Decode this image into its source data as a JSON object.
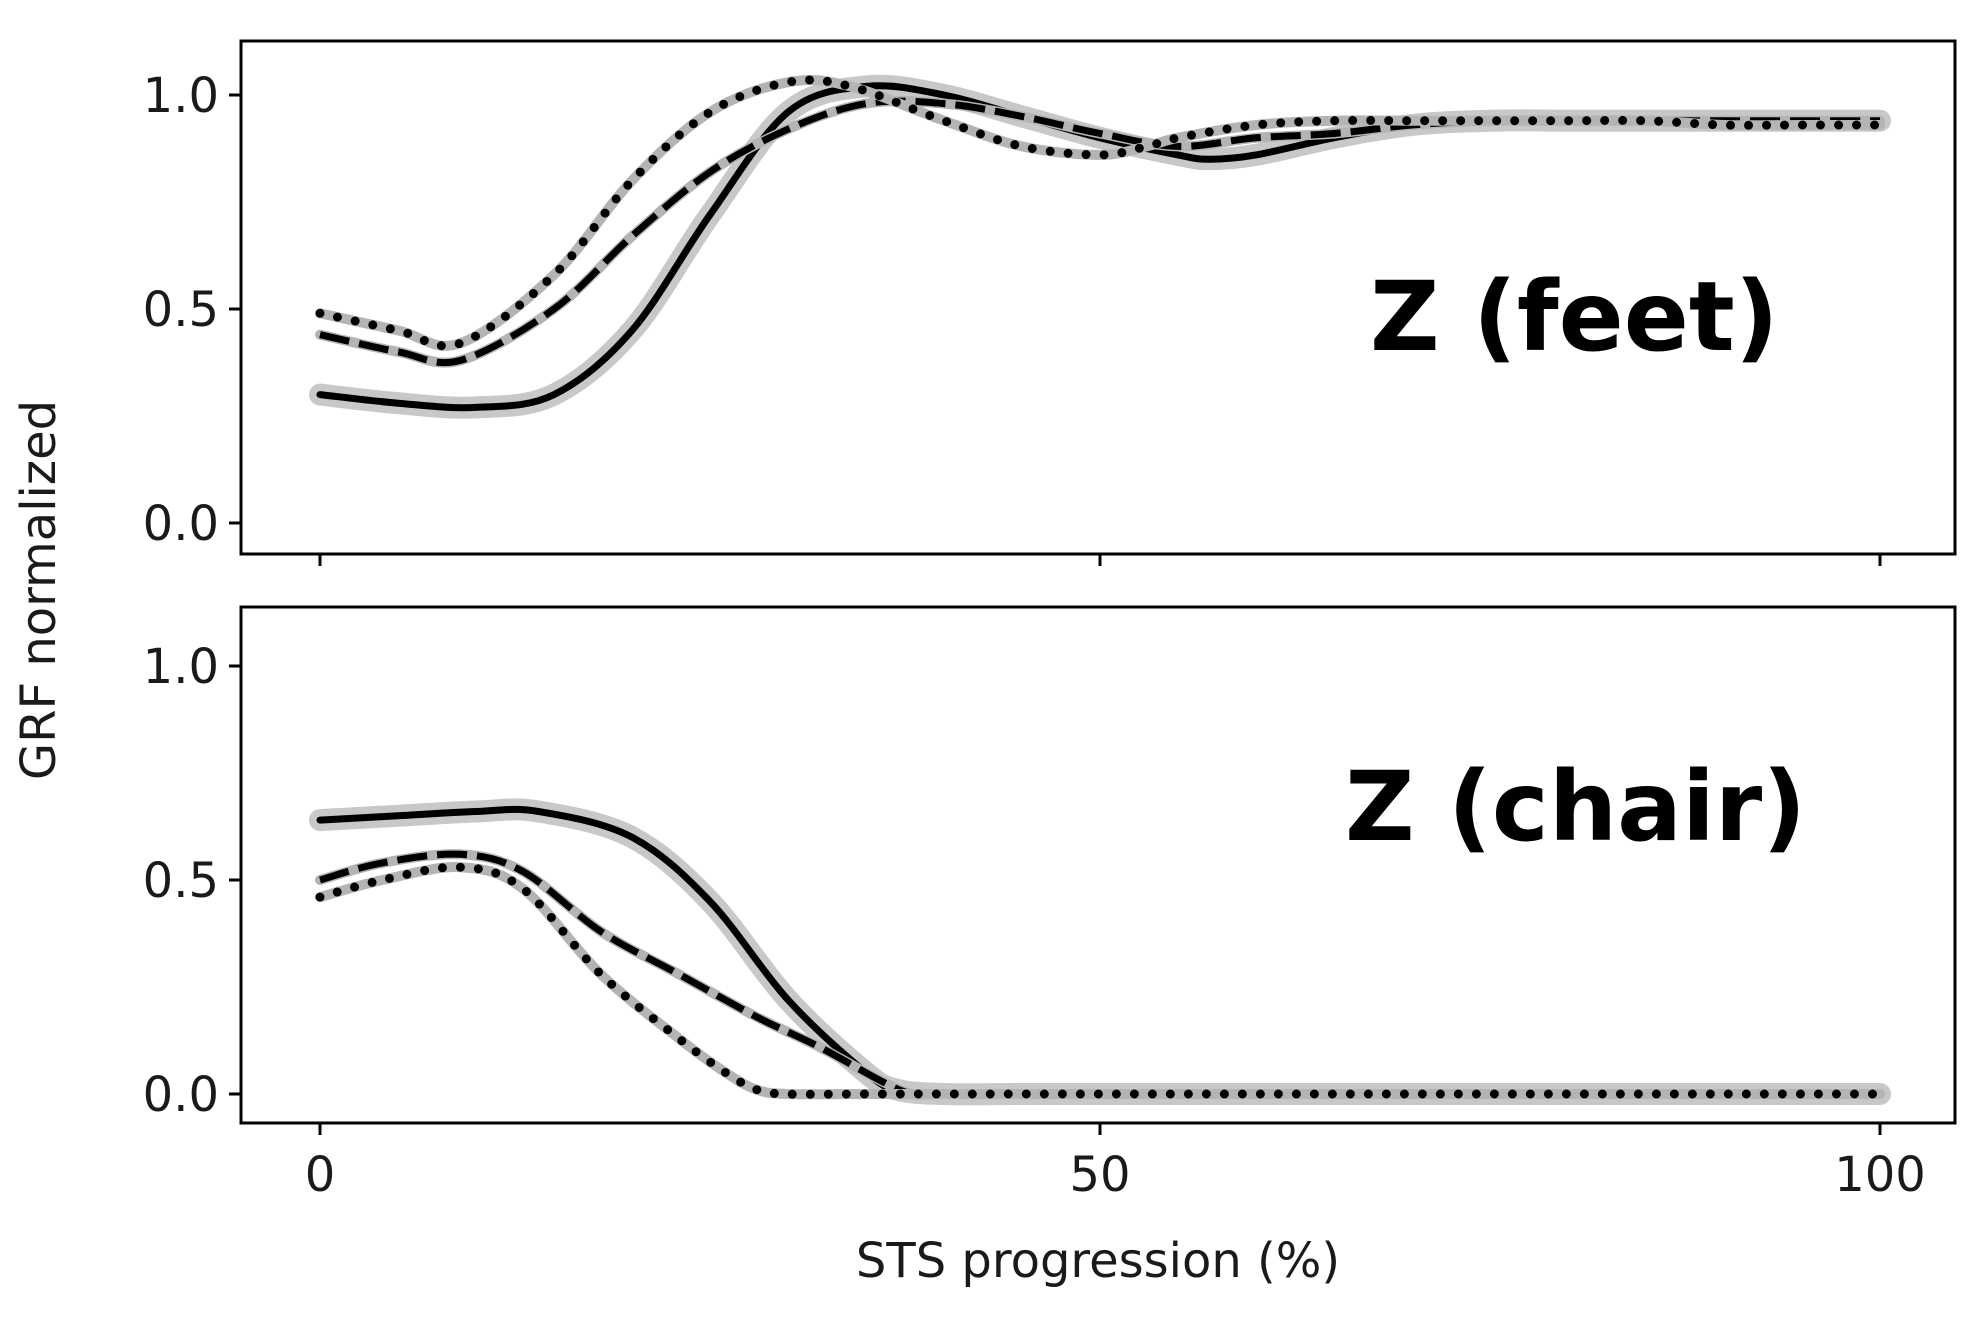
{
  "chart_data": [
    {
      "type": "line",
      "annotation": "Z (feet)",
      "xlim": [
        0,
        100
      ],
      "ylim": [
        0,
        1.1
      ],
      "yticks": [
        "0.0",
        "0.5",
        "1.0"
      ],
      "ylabel": "GRF normalized",
      "grid": false,
      "series": [
        {
          "style": "solid",
          "band": true,
          "x": [
            0,
            5,
            10,
            15,
            20,
            25,
            30,
            35,
            40,
            45,
            50,
            55,
            57,
            60,
            65,
            70,
            75,
            80,
            85,
            90,
            95,
            100
          ],
          "y": [
            0.3,
            0.28,
            0.27,
            0.3,
            0.45,
            0.72,
            0.96,
            1.02,
            1.0,
            0.95,
            0.9,
            0.86,
            0.85,
            0.86,
            0.9,
            0.93,
            0.94,
            0.94,
            0.94,
            0.94,
            0.94,
            0.94
          ]
        },
        {
          "style": "dashed",
          "band": false,
          "x": [
            0,
            5,
            9,
            15,
            20,
            25,
            30,
            35,
            40,
            45,
            50,
            55,
            60,
            65,
            70,
            75,
            80,
            85,
            90,
            95,
            100
          ],
          "y": [
            0.44,
            0.4,
            0.38,
            0.5,
            0.67,
            0.82,
            0.92,
            0.98,
            0.98,
            0.95,
            0.91,
            0.88,
            0.9,
            0.91,
            0.93,
            0.94,
            0.94,
            0.94,
            0.94,
            0.94,
            0.94
          ]
        },
        {
          "style": "dotted",
          "band": false,
          "x": [
            0,
            5,
            9,
            15,
            20,
            25,
            30,
            34,
            40,
            45,
            50,
            53,
            55,
            60,
            65,
            70,
            75,
            80,
            85,
            90,
            95,
            100
          ],
          "y": [
            0.49,
            0.45,
            0.42,
            0.58,
            0.8,
            0.96,
            1.03,
            1.02,
            0.94,
            0.88,
            0.86,
            0.88,
            0.9,
            0.93,
            0.94,
            0.94,
            0.94,
            0.94,
            0.94,
            0.93,
            0.93,
            0.93
          ]
        }
      ]
    },
    {
      "type": "line",
      "annotation": "Z (chair)",
      "xlim": [
        0,
        100
      ],
      "ylim": [
        0,
        1.1
      ],
      "xticks": [
        "0",
        "50",
        "100"
      ],
      "yticks": [
        "0.0",
        "0.5",
        "1.0"
      ],
      "xlabel": "STS progression (%)",
      "ylabel": "GRF normalized",
      "grid": false,
      "series": [
        {
          "style": "solid",
          "band": true,
          "x": [
            0,
            5,
            10,
            14,
            20,
            25,
            30,
            35,
            37,
            40,
            45,
            50,
            60,
            70,
            80,
            90,
            100
          ],
          "y": [
            0.64,
            0.65,
            0.66,
            0.66,
            0.6,
            0.45,
            0.22,
            0.05,
            0.01,
            0.0,
            0.0,
            0.0,
            0.0,
            0.0,
            0.0,
            0.0,
            0.0
          ]
        },
        {
          "style": "dashed",
          "band": false,
          "x": [
            0,
            4,
            9,
            13,
            18,
            23,
            28,
            32,
            36,
            38,
            40,
            50,
            60,
            70,
            80,
            90,
            100
          ],
          "y": [
            0.5,
            0.54,
            0.56,
            0.52,
            0.38,
            0.28,
            0.18,
            0.11,
            0.03,
            0.0,
            0.0,
            0.0,
            0.0,
            0.0,
            0.0,
            0.0,
            0.0
          ]
        },
        {
          "style": "dotted",
          "band": false,
          "x": [
            0,
            4,
            9,
            13,
            18,
            23,
            26,
            28,
            30,
            35,
            40,
            50,
            60,
            70,
            80,
            90,
            100
          ],
          "y": [
            0.46,
            0.5,
            0.53,
            0.48,
            0.28,
            0.13,
            0.05,
            0.01,
            0.0,
            0.0,
            0.0,
            0.0,
            0.0,
            0.0,
            0.0,
            0.0,
            0.0
          ]
        }
      ]
    }
  ]
}
